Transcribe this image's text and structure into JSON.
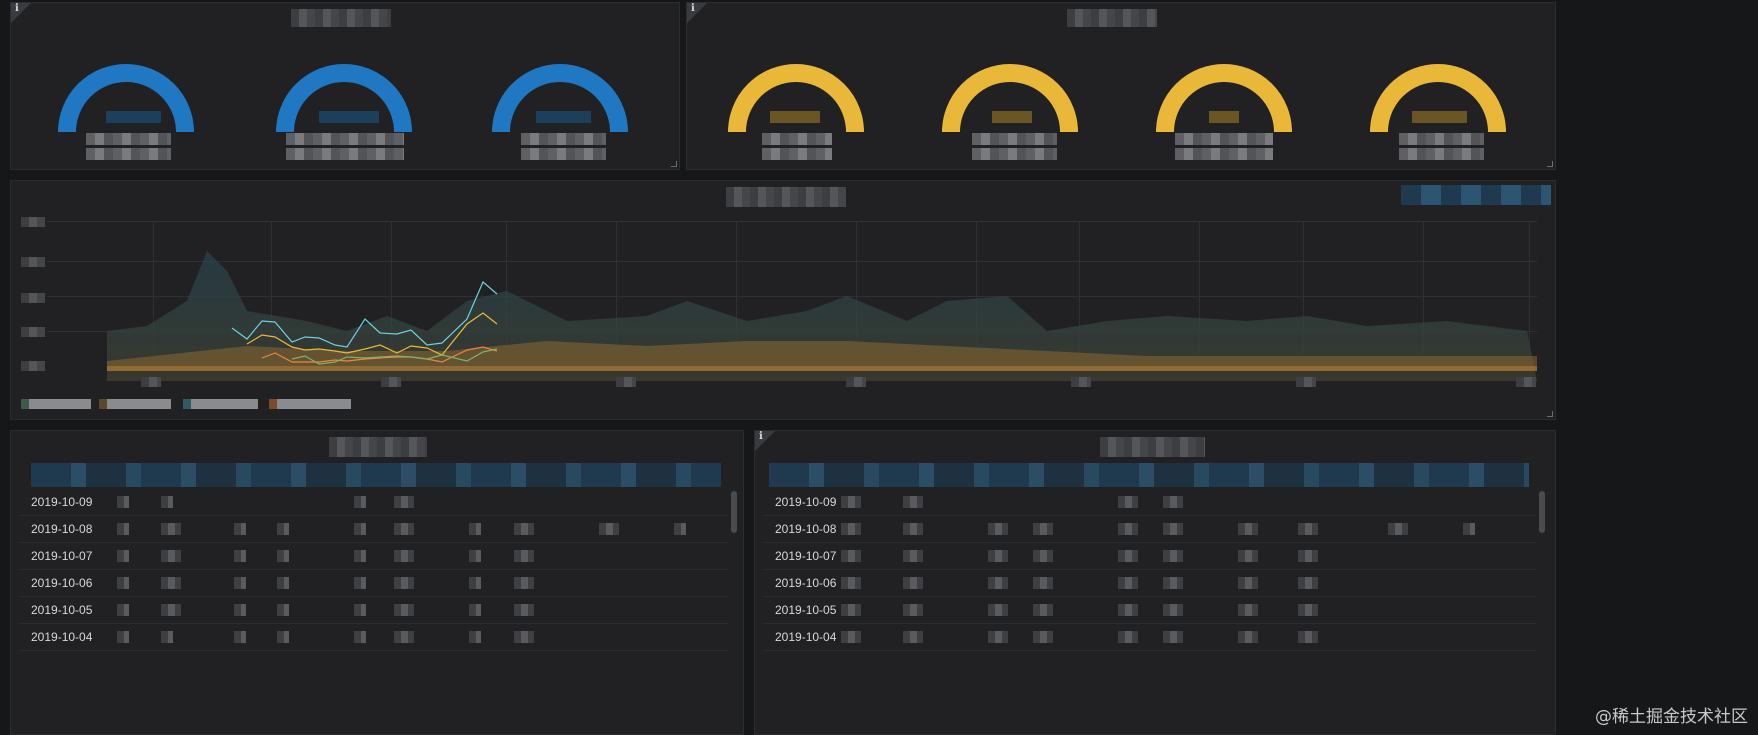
{
  "colors": {
    "gauge_blue": "#1f78c1",
    "gauge_yellow": "#eab839",
    "panel_bg": "#212124",
    "page_bg": "#161719",
    "series_cyan": "#6ed0e0",
    "series_yellow": "#eab839",
    "series_orange": "#ef843c",
    "series_green": "#7eb26d"
  },
  "gauges": {
    "left_count": 3,
    "right_count": 4,
    "left_color": "blue",
    "right_color": "yellow"
  },
  "icons": {
    "info": "info-icon",
    "resize": "resize-handle-icon"
  },
  "info_glyph": "i",
  "left_table": {
    "dates": [
      "2019-10-09",
      "2019-10-08",
      "2019-10-07",
      "2019-10-06",
      "2019-10-05",
      "2019-10-04"
    ]
  },
  "right_table": {
    "dates": [
      "2019-10-09",
      "2019-10-08",
      "2019-10-07",
      "2019-10-06",
      "2019-10-05",
      "2019-10-04"
    ]
  },
  "watermark": "@稀土掘金技术社区"
}
